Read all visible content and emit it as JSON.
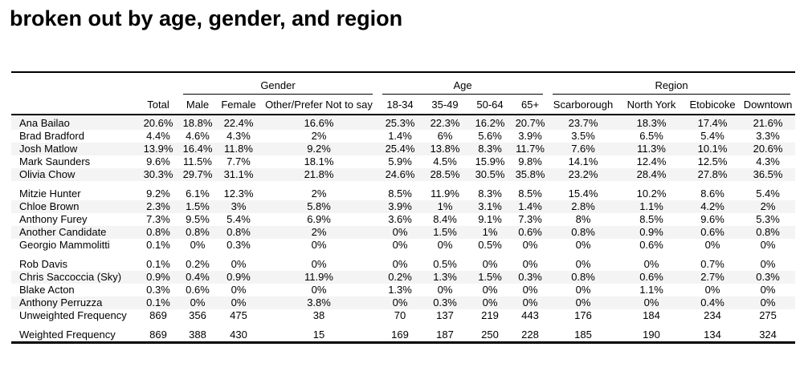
{
  "title": "broken out by age, gender, and region",
  "colors": {
    "background": "#ffffff",
    "text": "#000000",
    "rule": "#000000",
    "stripe": "#f4f4f5"
  },
  "table": {
    "total_label": "Total",
    "groups": [
      {
        "label": "Gender",
        "columns": [
          "Male",
          "Female",
          "Other/Prefer Not to say"
        ]
      },
      {
        "label": "Age",
        "columns": [
          "18-34",
          "35-49",
          "50-64",
          "65+"
        ]
      },
      {
        "label": "Region",
        "columns": [
          "Scarborough",
          "North York",
          "Etobicoke",
          "Downtown"
        ]
      }
    ],
    "rows": [
      {
        "name": "Ana Bailao",
        "shaded": true,
        "gap_after": false,
        "values": [
          "20.6%",
          "18.8%",
          "22.4%",
          "16.6%",
          "25.3%",
          "22.3%",
          "16.2%",
          "20.7%",
          "23.7%",
          "18.3%",
          "17.4%",
          "21.6%"
        ]
      },
      {
        "name": "Brad Bradford",
        "shaded": false,
        "gap_after": false,
        "values": [
          "4.4%",
          "4.6%",
          "4.3%",
          "2%",
          "1.4%",
          "6%",
          "5.6%",
          "3.9%",
          "3.5%",
          "6.5%",
          "5.4%",
          "3.3%"
        ]
      },
      {
        "name": "Josh Matlow",
        "shaded": true,
        "gap_after": false,
        "values": [
          "13.9%",
          "16.4%",
          "11.8%",
          "9.2%",
          "25.4%",
          "13.8%",
          "8.3%",
          "11.7%",
          "7.6%",
          "11.3%",
          "10.1%",
          "20.6%"
        ]
      },
      {
        "name": "Mark Saunders",
        "shaded": false,
        "gap_after": false,
        "values": [
          "9.6%",
          "11.5%",
          "7.7%",
          "18.1%",
          "5.9%",
          "4.5%",
          "15.9%",
          "9.8%",
          "14.1%",
          "12.4%",
          "12.5%",
          "4.3%"
        ]
      },
      {
        "name": "Olivia Chow",
        "shaded": true,
        "gap_after": true,
        "values": [
          "30.3%",
          "29.7%",
          "31.1%",
          "21.8%",
          "24.6%",
          "28.5%",
          "30.5%",
          "35.8%",
          "23.2%",
          "28.4%",
          "27.8%",
          "36.5%"
        ]
      },
      {
        "name": "Mitzie Hunter",
        "shaded": false,
        "gap_after": false,
        "values": [
          "9.2%",
          "6.1%",
          "12.3%",
          "2%",
          "8.5%",
          "11.9%",
          "8.3%",
          "8.5%",
          "15.4%",
          "10.2%",
          "8.6%",
          "5.4%"
        ]
      },
      {
        "name": "Chloe Brown",
        "shaded": true,
        "gap_after": false,
        "values": [
          "2.3%",
          "1.5%",
          "3%",
          "5.8%",
          "3.9%",
          "1%",
          "3.1%",
          "1.4%",
          "2.8%",
          "1.1%",
          "4.2%",
          "2%"
        ]
      },
      {
        "name": "Anthony Furey",
        "shaded": false,
        "gap_after": false,
        "values": [
          "7.3%",
          "9.5%",
          "5.4%",
          "6.9%",
          "3.6%",
          "8.4%",
          "9.1%",
          "7.3%",
          "8%",
          "8.5%",
          "9.6%",
          "5.3%"
        ]
      },
      {
        "name": "Another Candidate",
        "shaded": true,
        "gap_after": false,
        "values": [
          "0.8%",
          "0.8%",
          "0.8%",
          "2%",
          "0%",
          "1.5%",
          "1%",
          "0.6%",
          "0.8%",
          "0.9%",
          "0.6%",
          "0.8%"
        ]
      },
      {
        "name": "Georgio Mammolitti",
        "shaded": false,
        "gap_after": true,
        "values": [
          "0.1%",
          "0%",
          "0.3%",
          "0%",
          "0%",
          "0%",
          "0.5%",
          "0%",
          "0%",
          "0.6%",
          "0%",
          "0%"
        ]
      },
      {
        "name": "Rob Davis",
        "shaded": false,
        "gap_after": false,
        "values": [
          "0.1%",
          "0.2%",
          "0%",
          "0%",
          "0%",
          "0.5%",
          "0%",
          "0%",
          "0%",
          "0%",
          "0.7%",
          "0%"
        ]
      },
      {
        "name": "Chris Saccoccia (Sky)",
        "shaded": true,
        "gap_after": false,
        "values": [
          "0.9%",
          "0.4%",
          "0.9%",
          "11.9%",
          "0.2%",
          "1.3%",
          "1.5%",
          "0.3%",
          "0.8%",
          "0.6%",
          "2.7%",
          "0.3%"
        ]
      },
      {
        "name": "Blake Acton",
        "shaded": false,
        "gap_after": false,
        "values": [
          "0.3%",
          "0.6%",
          "0%",
          "0%",
          "1.3%",
          "0%",
          "0%",
          "0%",
          "0%",
          "1.1%",
          "0%",
          "0%"
        ]
      },
      {
        "name": "Anthony Perruzza",
        "shaded": true,
        "gap_after": false,
        "values": [
          "0.1%",
          "0%",
          "0%",
          "3.8%",
          "0%",
          "0.3%",
          "0%",
          "0%",
          "0%",
          "0%",
          "0.4%",
          "0%"
        ]
      },
      {
        "name": "Unweighted Frequency",
        "shaded": false,
        "gap_after": true,
        "values": [
          "869",
          "356",
          "475",
          "38",
          "70",
          "137",
          "219",
          "443",
          "176",
          "184",
          "234",
          "275"
        ]
      },
      {
        "name": "Weighted Frequency",
        "shaded": false,
        "gap_after": false,
        "values": [
          "869",
          "388",
          "430",
          "15",
          "169",
          "187",
          "250",
          "228",
          "185",
          "190",
          "134",
          "324"
        ]
      }
    ]
  }
}
